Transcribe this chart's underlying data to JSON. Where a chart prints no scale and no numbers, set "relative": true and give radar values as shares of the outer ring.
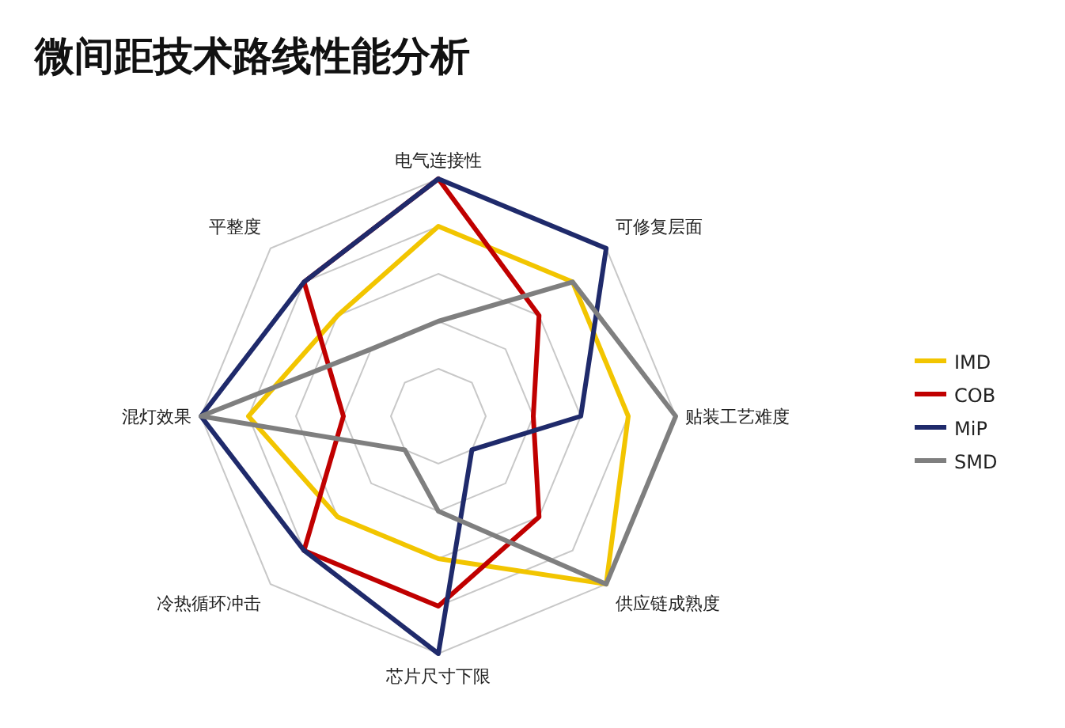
{
  "chart_data": {
    "type": "radar",
    "title": "微间距技术路线性能分析",
    "relative": true,
    "grid": true,
    "legend": "right",
    "categories": [
      "电气连接性",
      "可修复层面",
      "贴装工艺难度",
      "供应链成熟度",
      "芯片尺寸下限",
      "冷热循环冲击",
      "混灯效果",
      "平整度"
    ],
    "series": [
      {
        "name": "IMD",
        "color": "#f2c500",
        "values": [
          0.8,
          0.8,
          0.8,
          1.0,
          0.6,
          0.6,
          0.8,
          0.6
        ]
      },
      {
        "name": "COB",
        "color": "#c00000",
        "values": [
          1.0,
          0.6,
          0.4,
          0.6,
          0.8,
          0.8,
          0.4,
          0.8
        ]
      },
      {
        "name": "MiP",
        "color": "#1f2a6b",
        "values": [
          1.0,
          1.0,
          0.6,
          0.2,
          1.0,
          0.8,
          1.0,
          0.8
        ]
      },
      {
        "name": "SMD",
        "color": "#7f7f7f",
        "values": [
          0.4,
          0.8,
          1.0,
          1.0,
          0.4,
          0.2,
          1.0,
          0.4
        ]
      }
    ]
  }
}
